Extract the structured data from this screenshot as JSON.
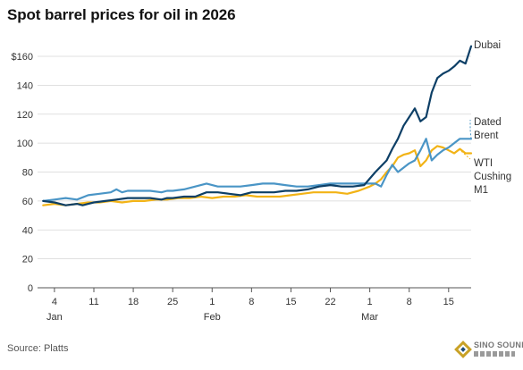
{
  "header": {
    "title": "Spot barrel prices for oil in 2026"
  },
  "footer": {
    "source": "Source: Platts"
  },
  "watermark": {
    "text": "SINO SOUND"
  },
  "chart_data": {
    "type": "line",
    "title": "Spot barrel prices for oil in 2026",
    "xlabel": "",
    "ylabel": "",
    "ylim": [
      0,
      170
    ],
    "yticks": [
      0,
      20,
      40,
      60,
      80,
      100,
      120,
      140,
      160
    ],
    "ytick_labels": [
      "0",
      "20",
      "40",
      "60",
      "80",
      "100",
      "120",
      "140",
      "$160"
    ],
    "xlim": [
      1,
      78
    ],
    "xticks": [
      {
        "day": 4,
        "label": "4",
        "month": "Jan"
      },
      {
        "day": 11,
        "label": "11"
      },
      {
        "day": 18,
        "label": "18"
      },
      {
        "day": 25,
        "label": "25"
      },
      {
        "day": 32,
        "label": "1",
        "month": "Feb"
      },
      {
        "day": 39,
        "label": "8"
      },
      {
        "day": 46,
        "label": "15"
      },
      {
        "day": 53,
        "label": "22"
      },
      {
        "day": 60,
        "label": "1",
        "month": "Mar"
      },
      {
        "day": 67,
        "label": "8"
      },
      {
        "day": 74,
        "label": "15"
      }
    ],
    "grid": true,
    "legend": "labels at line ends (right)",
    "series": [
      {
        "name": "Dubai",
        "label_lines": [
          "Dubai"
        ],
        "color": "#0d3f66",
        "x": [
          2,
          4,
          6,
          8,
          9,
          10,
          11,
          13,
          15,
          17,
          19,
          21,
          23,
          24,
          25,
          27,
          29,
          31,
          33,
          35,
          37,
          39,
          41,
          43,
          45,
          47,
          49,
          51,
          53,
          55,
          57,
          59,
          61,
          62,
          63,
          64,
          65,
          66,
          67,
          68,
          69,
          70,
          71,
          72,
          73,
          74,
          75,
          76,
          77,
          78
        ],
        "y": [
          60,
          59,
          57,
          58,
          57,
          58,
          59,
          60,
          61,
          62,
          62,
          62,
          61,
          62,
          62,
          63,
          63,
          66,
          66,
          65,
          64,
          66,
          66,
          66,
          67,
          67,
          68,
          70,
          71,
          70,
          70,
          71,
          80,
          84,
          88,
          96,
          103,
          112,
          118,
          124,
          115,
          118,
          135,
          145,
          148,
          150,
          153,
          157,
          155,
          167
        ]
      },
      {
        "name": "Dated Brent",
        "label_lines": [
          "Dated",
          "Brent"
        ],
        "color": "#4a95c6",
        "x": [
          2,
          4,
          6,
          8,
          10,
          12,
          14,
          15,
          16,
          17,
          19,
          21,
          23,
          24,
          25,
          27,
          29,
          31,
          33,
          35,
          37,
          39,
          41,
          43,
          45,
          47,
          49,
          51,
          53,
          55,
          57,
          59,
          61,
          62,
          63,
          64,
          65,
          66,
          67,
          68,
          69,
          70,
          71,
          72,
          73,
          74,
          75,
          76,
          77,
          78
        ],
        "y": [
          60,
          61,
          62,
          61,
          64,
          65,
          66,
          68,
          66,
          67,
          67,
          67,
          66,
          67,
          67,
          68,
          70,
          72,
          70,
          70,
          70,
          71,
          72,
          72,
          71,
          70,
          70,
          71,
          72,
          72,
          72,
          72,
          72,
          70,
          78,
          85,
          80,
          83,
          86,
          88,
          95,
          103,
          88,
          92,
          95,
          97,
          100,
          103,
          103,
          103
        ]
      },
      {
        "name": "WTI Cushing M1",
        "label_lines": [
          "WTI",
          "Cushing",
          "M1"
        ],
        "color": "#f2b316",
        "x": [
          2,
          4,
          6,
          8,
          10,
          12,
          14,
          16,
          18,
          20,
          22,
          24,
          26,
          28,
          30,
          32,
          34,
          36,
          38,
          40,
          42,
          44,
          46,
          48,
          50,
          52,
          54,
          56,
          58,
          60,
          61,
          62,
          63,
          64,
          65,
          66,
          67,
          68,
          69,
          70,
          71,
          72,
          73,
          74,
          75,
          76,
          77,
          78
        ],
        "y": [
          57,
          58,
          57,
          58,
          59,
          59,
          60,
          59,
          60,
          60,
          61,
          61,
          62,
          62,
          63,
          62,
          63,
          63,
          64,
          63,
          63,
          63,
          64,
          65,
          66,
          66,
          66,
          65,
          67,
          70,
          72,
          75,
          80,
          84,
          90,
          92,
          93,
          95,
          84,
          88,
          95,
          98,
          97,
          95,
          93,
          96,
          93,
          93
        ]
      }
    ]
  }
}
